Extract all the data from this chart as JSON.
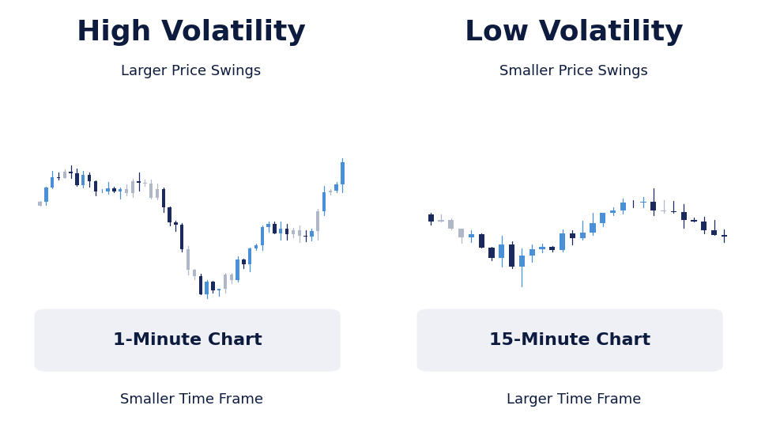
{
  "bg_color": "#ffffff",
  "dark_navy": "#0d1b3e",
  "left_title": "High Volatility",
  "left_subtitle": "Larger Price Swings",
  "left_label": "1-Minute Chart",
  "left_sublabel": "Smaller Time Frame",
  "right_title": "Low Volatility",
  "right_subtitle": "Smaller Price Swings",
  "right_label": "15-Minute Chart",
  "right_sublabel": "Larger Time Frame",
  "blue_candle": "#4a90d9",
  "dark_candle": "#1a2a5e",
  "gray_candle": "#b0b8c8",
  "box_bg": "#eef0f5"
}
